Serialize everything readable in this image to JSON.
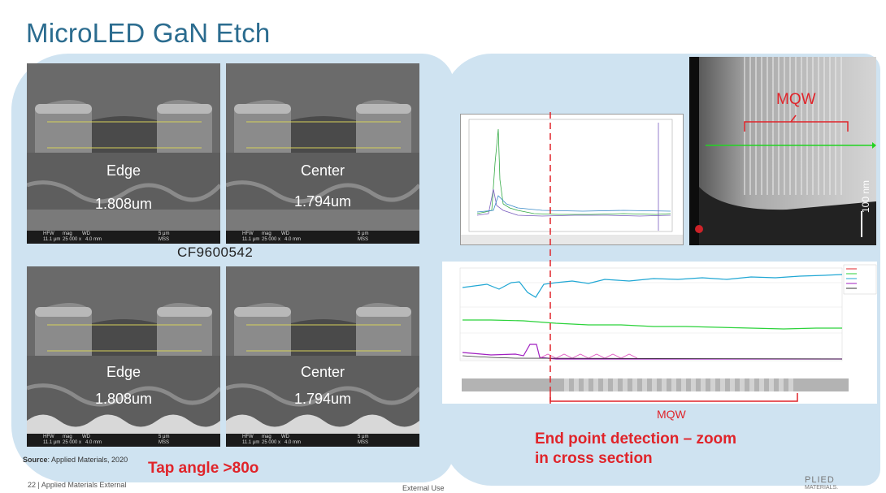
{
  "title": "MicroLED GaN Etch",
  "sem_images": [
    {
      "position": "Edge",
      "value": "1.808um"
    },
    {
      "position": "Center",
      "value": "1.794um"
    },
    {
      "position": "Edge",
      "value": "1.808um"
    },
    {
      "position": "Center",
      "value": "1.794um"
    }
  ],
  "sem_databar": {
    "hfw": "HFW",
    "mag": "mag",
    "wd": "WD",
    "hfw_val": "11.1 μm",
    "mag_val": "25 000 x",
    "wd_val": "4.0 mm",
    "scale": "5 μm",
    "detector": "MSS"
  },
  "sample_id": "CF9600542",
  "source_label": "Source",
  "source_text": ": Applied Materials, 2020",
  "tap_angle": "Tap angle >80o",
  "mqw_top": "MQW",
  "mqw_bottom": "MQW",
  "endpoint_line1": "End point detection – zoom",
  "endpoint_line2": "in cross section",
  "tem_scale": "100 nm",
  "footer_page": "22  |  Applied Materials External",
  "footer_mid": "External Use",
  "logo": {
    "line1": "PLIED",
    "line2": "MATERIALS."
  },
  "colors": {
    "title": "#2b6c8f",
    "panel": "#cfe3f1",
    "accent_red": "#e0242a"
  }
}
